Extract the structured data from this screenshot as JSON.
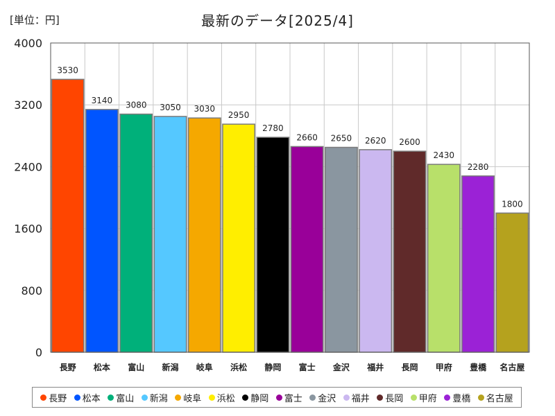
{
  "unit_label": "[単位：円]",
  "chart_data": {
    "type": "bar",
    "title": "最新のデータ[2025/4]",
    "ylabel": "円",
    "ylim": [
      0,
      4000
    ],
    "yticks": [
      0,
      800,
      1600,
      2400,
      3200,
      4000
    ],
    "grid": true,
    "legend_position": "bottom",
    "categories": [
      "長野",
      "松本",
      "富山",
      "新潟",
      "岐阜",
      "浜松",
      "静岡",
      "富士",
      "金沢",
      "福井",
      "長岡",
      "甲府",
      "豊橋",
      "名古屋"
    ],
    "values": [
      3530,
      3140,
      3080,
      3050,
      3030,
      2950,
      2780,
      2660,
      2650,
      2620,
      2600,
      2430,
      2280,
      1800
    ],
    "colors": [
      "#ff4500",
      "#0055ff",
      "#00b07a",
      "#55c8ff",
      "#f5a800",
      "#ffee00",
      "#000000",
      "#990099",
      "#8a96a0",
      "#cbb8f0",
      "#602a2a",
      "#b8e06a",
      "#9b22d6",
      "#b5a21e"
    ]
  }
}
